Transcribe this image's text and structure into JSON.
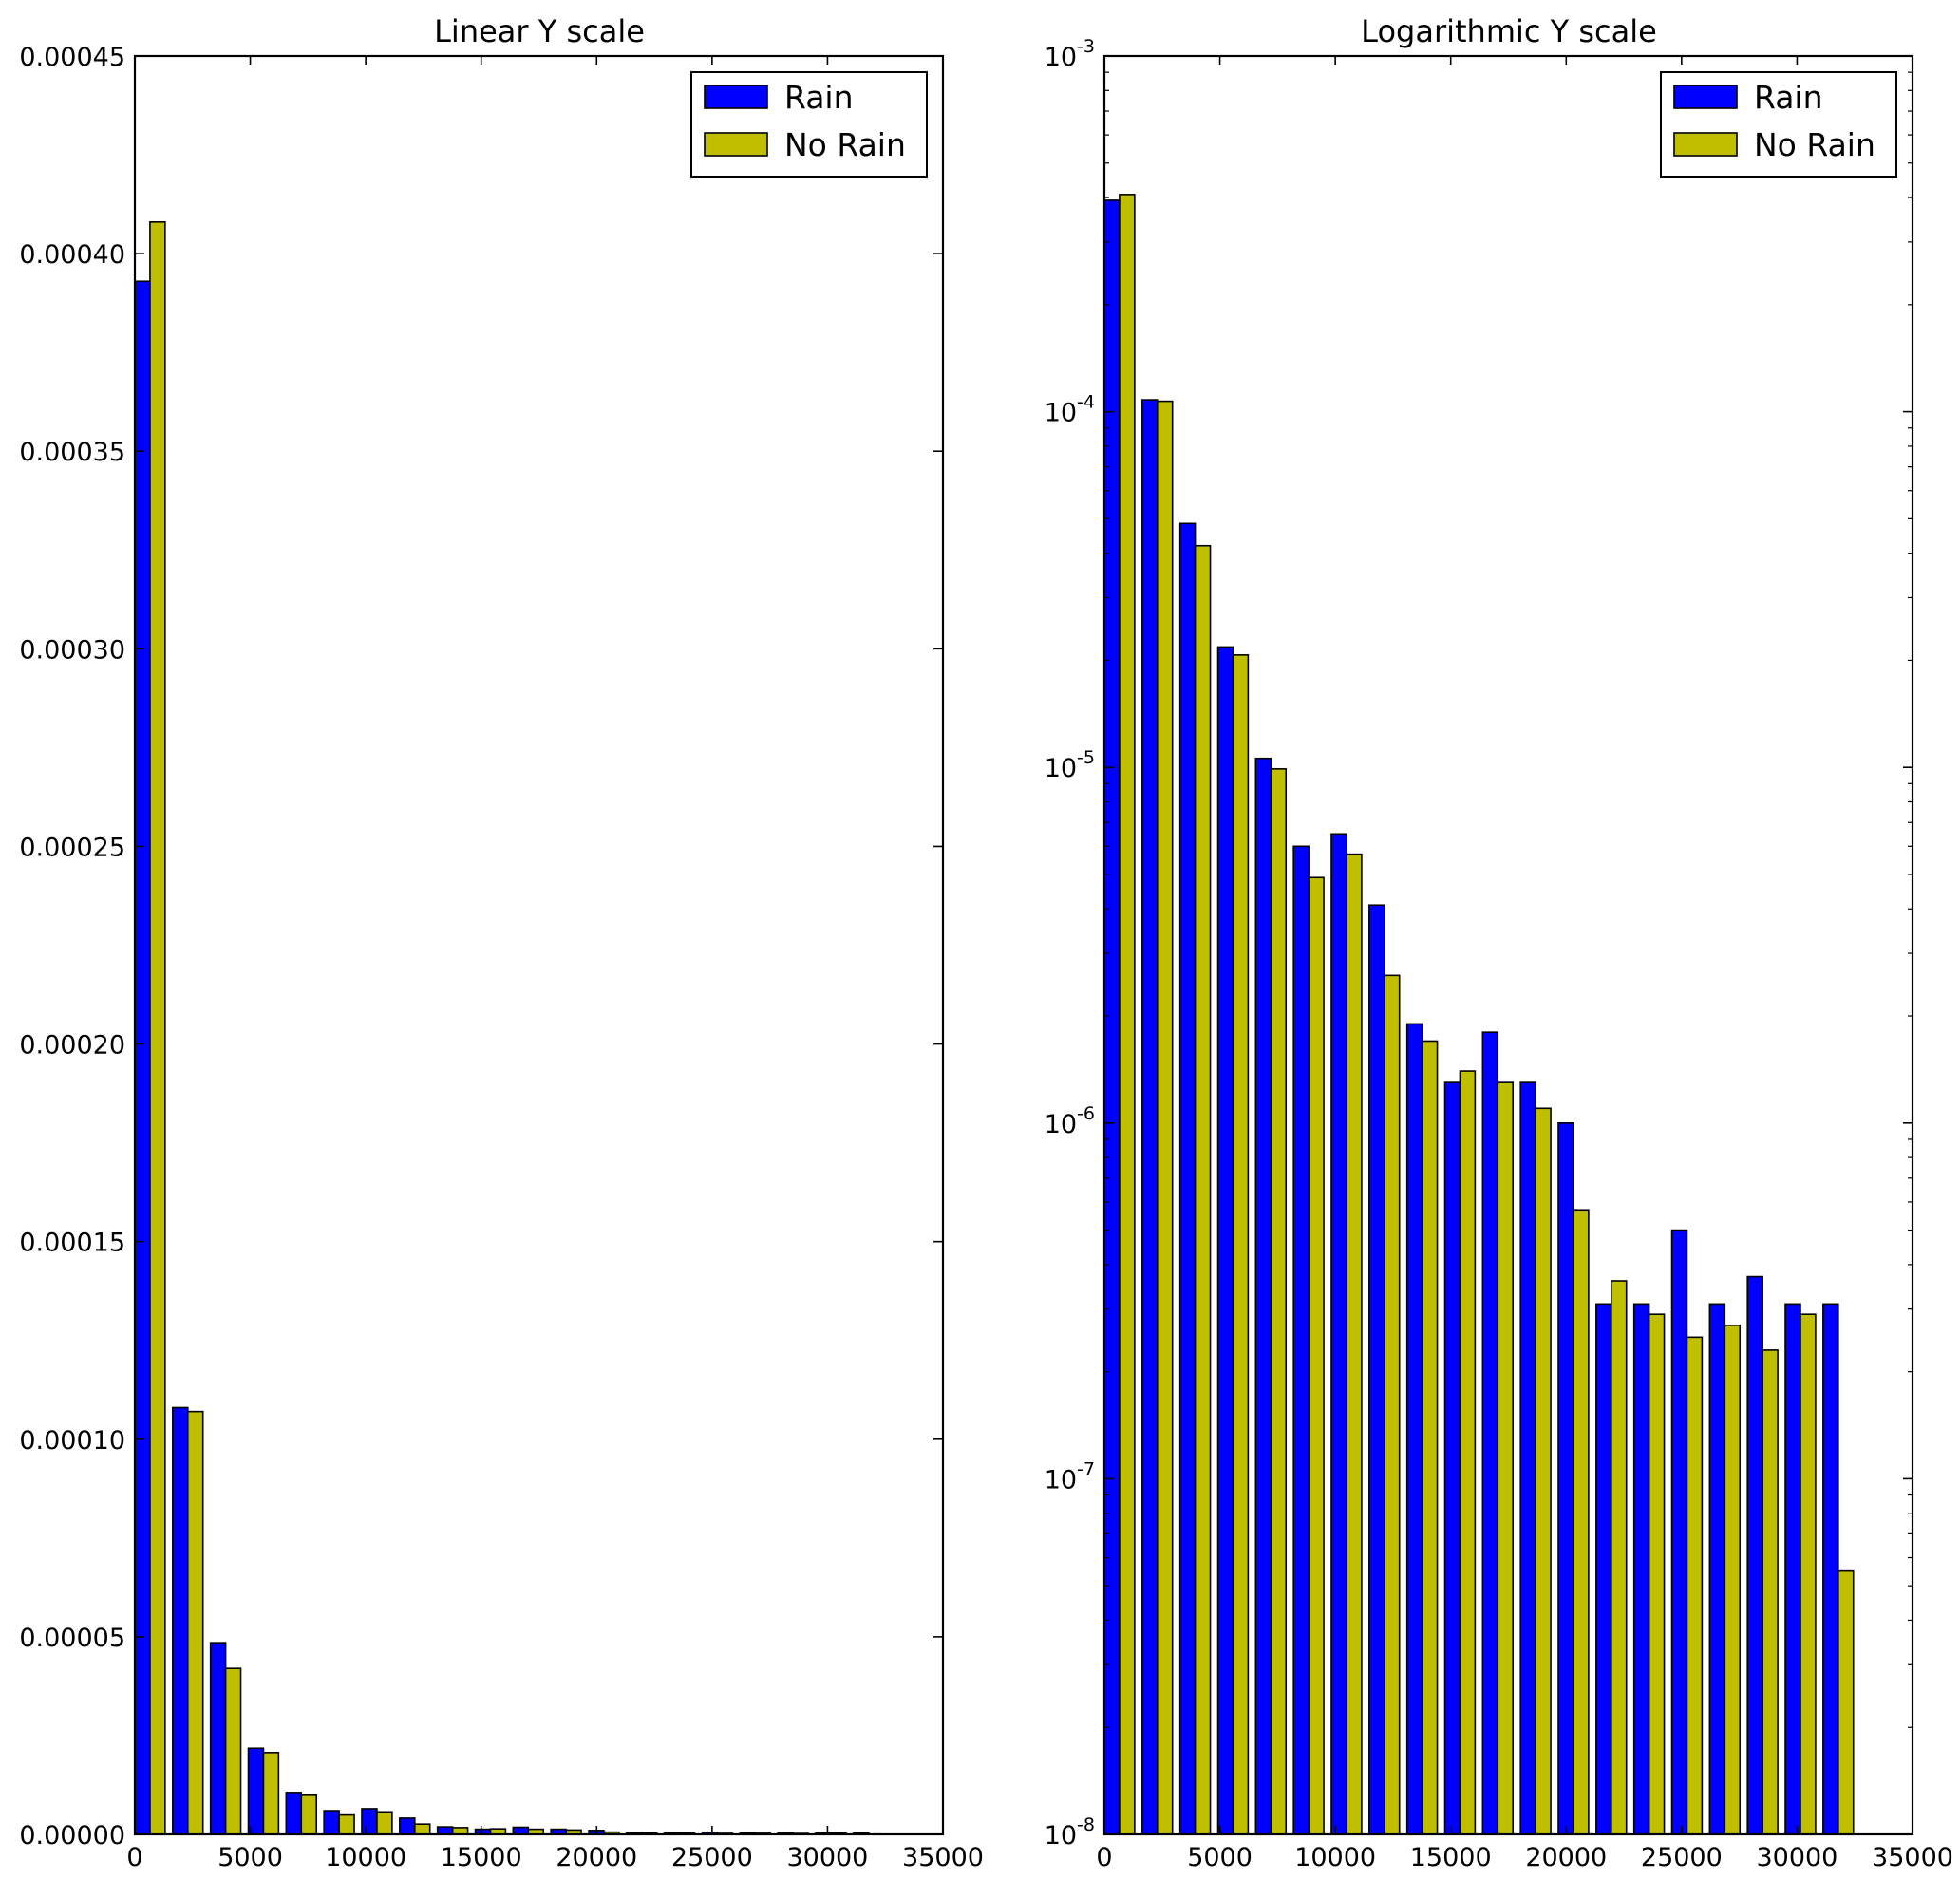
{
  "figure": {
    "background": "#ffffff",
    "bin_starts": [
      0,
      1638.35,
      3276.7,
      4915.05,
      6553.4,
      8191.75,
      9830.1,
      11468.45,
      13106.8,
      14745.15,
      16383.5,
      18021.85,
      19660.2,
      21298.55,
      22936.9,
      24575.25,
      26213.6,
      27851.95,
      29490.3,
      31128.65
    ],
    "bin_width": 1638.35,
    "series_colors": {
      "rain": "#0000ff",
      "no_rain": "#bfbf00"
    },
    "legend": {
      "rain": "Rain",
      "no_rain": "No Rain",
      "placement": "upper right"
    }
  },
  "chart_data": [
    {
      "type": "bar",
      "title": "Linear Y scale",
      "xlabel": "",
      "ylabel": "",
      "yscale": "linear",
      "xlim": [
        0,
        35000
      ],
      "ylim": [
        0,
        0.00045
      ],
      "x_ticks": [
        "0",
        "5000",
        "10000",
        "15000",
        "20000",
        "25000",
        "30000",
        "35000"
      ],
      "y_ticks": [
        "0.00000",
        "0.00005",
        "0.00010",
        "0.00015",
        "0.00020",
        "0.00025",
        "0.00030",
        "0.00035",
        "0.00040",
        "0.00045"
      ],
      "grid": false,
      "legend_placement": "top-right",
      "series": [
        {
          "name": "Rain",
          "color": "#0000ff",
          "values": [
            0.000393,
            0.000108,
            4.85e-05,
            2.18e-05,
            1.06e-05,
            6e-06,
            6.5e-06,
            4.1e-06,
            1.9e-06,
            1.3e-06,
            1.8e-06,
            1.3e-06,
            1e-06,
            3.1e-07,
            3.1e-07,
            5e-07,
            3.1e-07,
            3.7e-07,
            3.1e-07,
            3.1e-07
          ]
        },
        {
          "name": "No Rain",
          "color": "#bfbf00",
          "values": [
            0.000408,
            0.000107,
            4.2e-05,
            2.07e-05,
            9.9e-06,
            4.9e-06,
            5.7e-06,
            2.6e-06,
            1.7e-06,
            1.4e-06,
            1.3e-06,
            1.1e-06,
            5.7e-07,
            3.6e-07,
            2.9e-07,
            2.5e-07,
            2.7e-07,
            2.3e-07,
            2.9e-07,
            5.5e-08
          ]
        }
      ]
    },
    {
      "type": "bar",
      "title": "Logarithmic Y scale",
      "xlabel": "",
      "ylabel": "",
      "yscale": "log",
      "xlim": [
        0,
        35000
      ],
      "ylim": [
        1e-08,
        0.001
      ],
      "x_ticks": [
        "0",
        "5000",
        "10000",
        "15000",
        "20000",
        "25000",
        "30000",
        "35000"
      ],
      "y_ticks": [
        {
          "base": "10",
          "exp": "-8"
        },
        {
          "base": "10",
          "exp": "-7"
        },
        {
          "base": "10",
          "exp": "-6"
        },
        {
          "base": "10",
          "exp": "-5"
        },
        {
          "base": "10",
          "exp": "-4"
        },
        {
          "base": "10",
          "exp": "-3"
        }
      ],
      "grid": false,
      "legend_placement": "top-right",
      "series": [
        {
          "name": "Rain",
          "color": "#0000ff",
          "values": [
            0.000393,
            0.000108,
            4.85e-05,
            2.18e-05,
            1.06e-05,
            6e-06,
            6.5e-06,
            4.1e-06,
            1.9e-06,
            1.3e-06,
            1.8e-06,
            1.3e-06,
            1e-06,
            3.1e-07,
            3.1e-07,
            5e-07,
            3.1e-07,
            3.7e-07,
            3.1e-07,
            3.1e-07
          ]
        },
        {
          "name": "No Rain",
          "color": "#bfbf00",
          "values": [
            0.000408,
            0.000107,
            4.2e-05,
            2.07e-05,
            9.9e-06,
            4.9e-06,
            5.7e-06,
            2.6e-06,
            1.7e-06,
            1.4e-06,
            1.3e-06,
            1.1e-06,
            5.7e-07,
            3.6e-07,
            2.9e-07,
            2.5e-07,
            2.7e-07,
            2.3e-07,
            2.9e-07,
            5.5e-08
          ]
        }
      ]
    }
  ]
}
